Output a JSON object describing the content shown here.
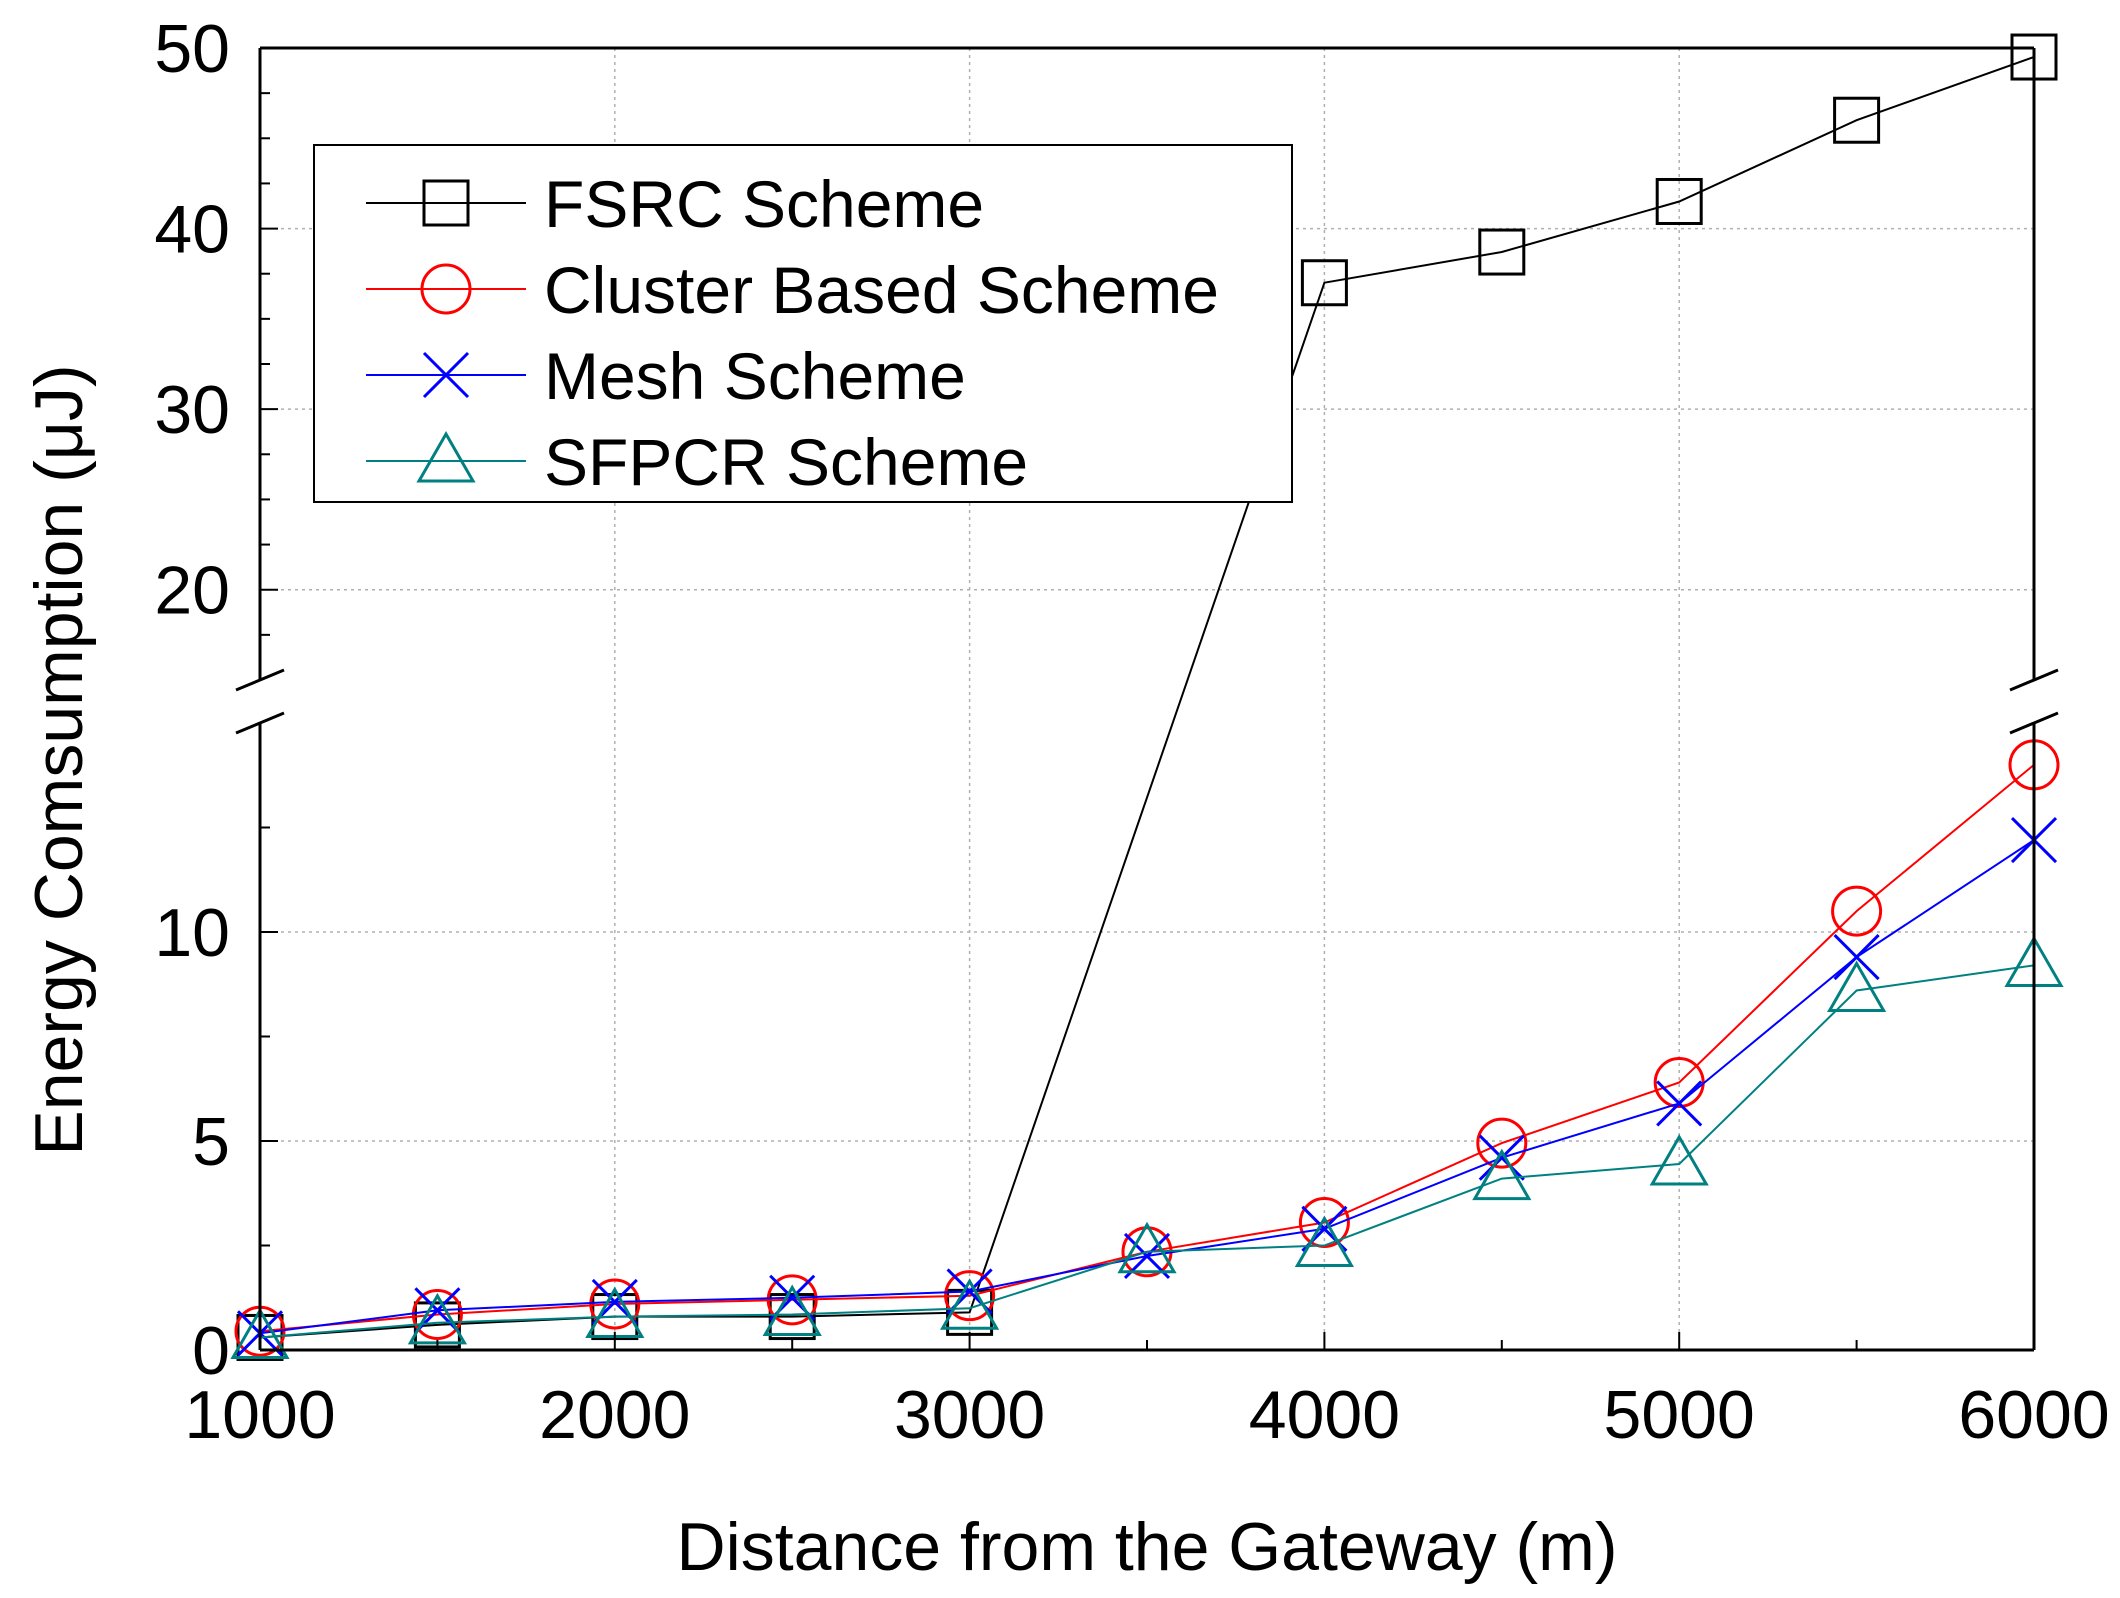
{
  "chart_data": {
    "type": "line",
    "title": "",
    "xlabel": "Distance from the Gateway (m)",
    "ylabel": "Energy Comsumption (μJ)",
    "x": [
      1000,
      1500,
      2000,
      2500,
      3000,
      3500,
      4000,
      4500,
      5000,
      5500,
      6000
    ],
    "xlim": [
      1000,
      6000
    ],
    "xticks": [
      1000,
      2000,
      3000,
      4000,
      5000,
      6000
    ],
    "y_axis_break": {
      "lower_range": [
        0,
        15
      ],
      "upper_range": [
        15,
        50
      ],
      "lower_ticks": [
        0,
        5,
        10
      ],
      "upper_ticks": [
        20,
        30,
        40,
        50
      ]
    },
    "grid": true,
    "legend_position": "top-left",
    "series": [
      {
        "name": "FSRC Scheme",
        "color": "#000000",
        "marker": "square",
        "values": [
          0.3,
          0.6,
          0.8,
          0.8,
          0.9,
          null,
          37.0,
          38.7,
          41.5,
          46.0,
          49.5
        ]
      },
      {
        "name": "Cluster Based Scheme",
        "color": "#ff0000",
        "marker": "circle",
        "values": [
          0.45,
          0.85,
          1.1,
          1.2,
          1.3,
          2.35,
          3.05,
          4.95,
          6.4,
          10.5,
          14.0
        ]
      },
      {
        "name": "Mesh Scheme",
        "color": "#0000ff",
        "marker": "x",
        "values": [
          0.4,
          0.95,
          1.15,
          1.25,
          1.4,
          2.25,
          2.9,
          4.6,
          5.9,
          9.4,
          12.2
        ]
      },
      {
        "name": "SFPCR Scheme",
        "color": "#008080",
        "marker": "triangle",
        "values": [
          0.3,
          0.65,
          0.8,
          0.85,
          1.0,
          2.35,
          2.5,
          4.1,
          4.45,
          8.6,
          9.2
        ]
      }
    ]
  }
}
